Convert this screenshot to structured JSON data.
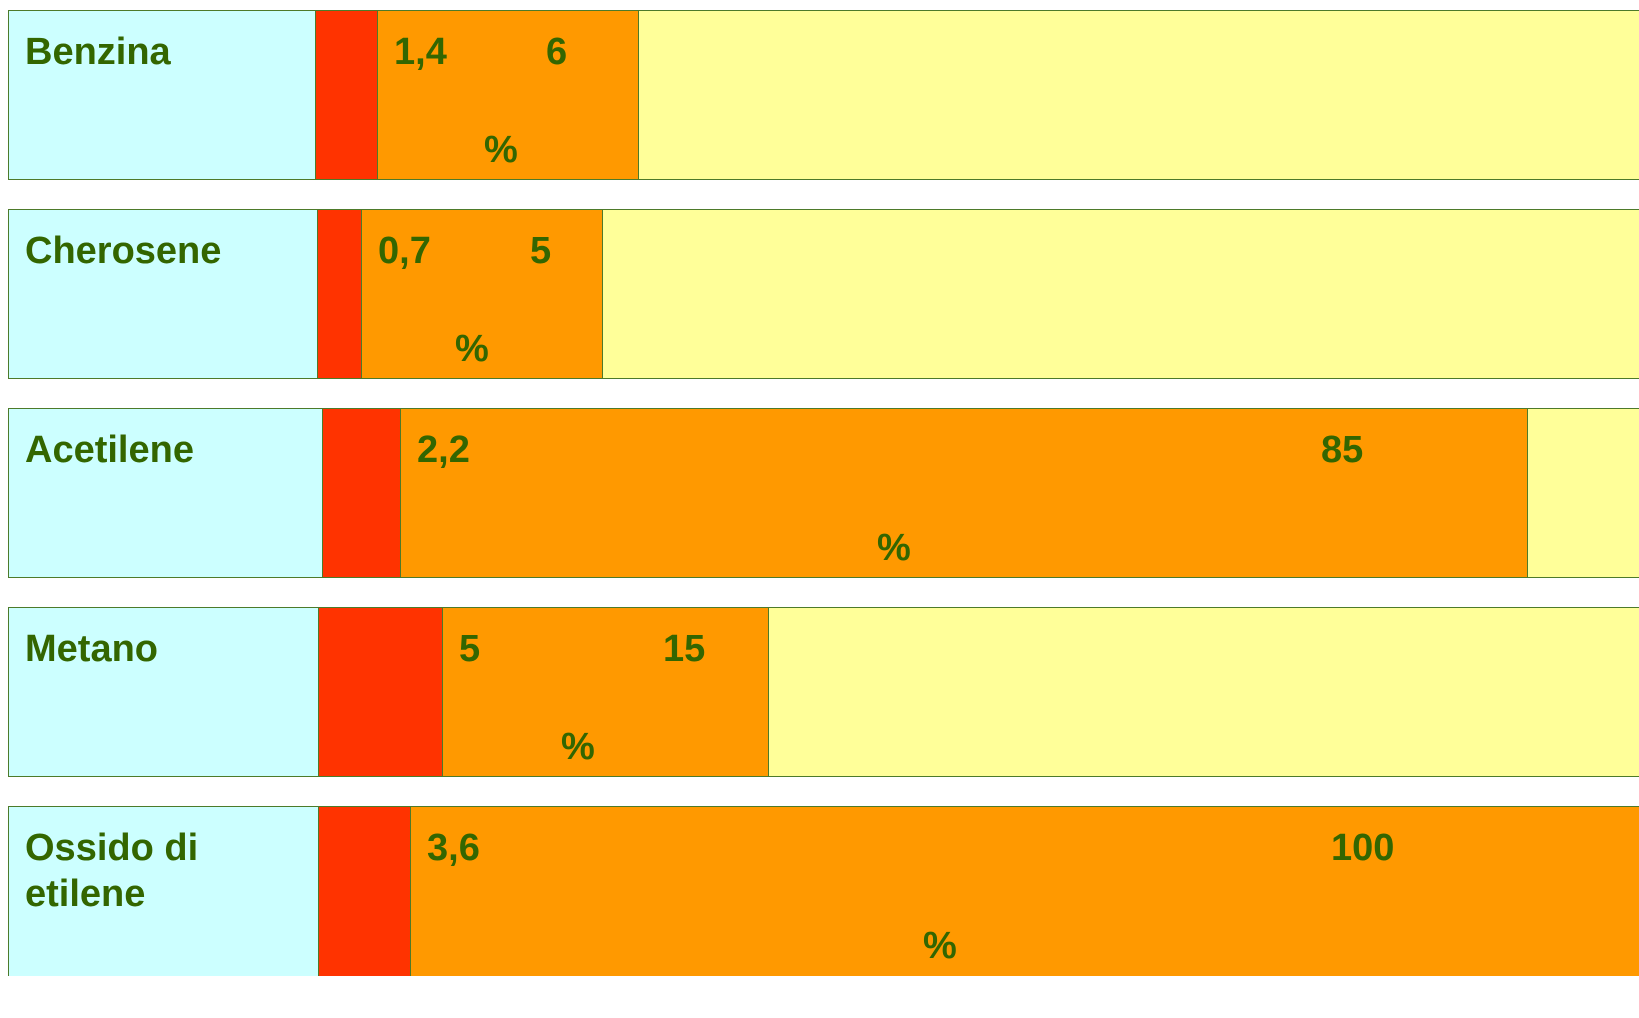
{
  "colors": {
    "name_cell": "#ccffff",
    "below_limit": "#ff3300",
    "flammable_range": "#ff9900",
    "above_limit": "#ffff99",
    "text": "#336600",
    "border": "#4d7a2a"
  },
  "rows": [
    {
      "name": "Benzina",
      "lower": "1,4",
      "upper": "6",
      "unit": "%",
      "lower_value": 1.4,
      "upper_value": 6
    },
    {
      "name": "Cherosene",
      "lower": "0,7",
      "upper": "5",
      "unit": "%",
      "lower_value": 0.7,
      "upper_value": 5
    },
    {
      "name": "Acetilene",
      "lower": "2,2",
      "upper": "85",
      "unit": "%",
      "lower_value": 2.2,
      "upper_value": 85
    },
    {
      "name": "Metano",
      "lower": "5",
      "upper": "15",
      "unit": "%",
      "lower_value": 5,
      "upper_value": 15
    },
    {
      "name": "Ossido di etilene",
      "lower": "3,6",
      "upper": "100",
      "unit": "%",
      "lower_value": 3.6,
      "upper_value": 100
    }
  ]
}
